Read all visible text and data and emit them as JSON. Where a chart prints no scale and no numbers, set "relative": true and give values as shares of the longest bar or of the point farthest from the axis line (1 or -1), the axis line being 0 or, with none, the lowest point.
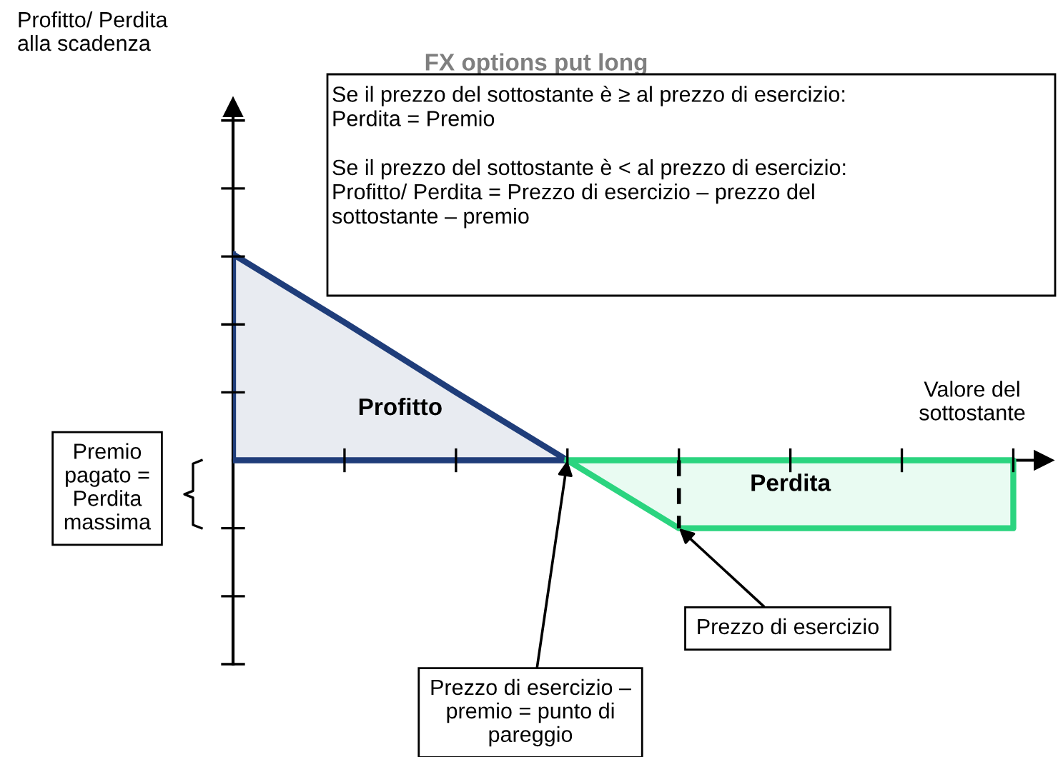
{
  "chart_data": {
    "type": "area",
    "relative": true,
    "title": "FX options put long",
    "xlabel": "Valore del\nsottostante",
    "categories": [
      null,
      null,
      null,
      null,
      null,
      null,
      null,
      null
    ],
    "series": [
      {
        "name": "Profitto",
        "color": "#1f3d7a",
        "values": [
          1,
          0.67,
          0.33,
          0,
          null,
          null,
          null,
          null
        ]
      },
      {
        "name": "Perdita",
        "color": "#2bd47f",
        "values": [
          null,
          null,
          null,
          0,
          -0.33,
          -0.33,
          -0.33,
          -0.33
        ]
      }
    ],
    "annotations": [
      "Profitto/ Perdita\nalla scadenza",
      "Se il prezzo del sottostante è ≥ al prezzo di esercizio:\nPerdita = Premio\n\nSe il prezzo del sottostante è < al prezzo di esercizio:\nProfitto/ Perdita = Prezzo di esercizio – prezzo del\nsottostante – premio",
      "Premio\npagato =\nPerdita\nmassima",
      "Prezzo di esercizio",
      "Prezzo di esercizio –\npremio = punto di\npareggio"
    ]
  }
}
